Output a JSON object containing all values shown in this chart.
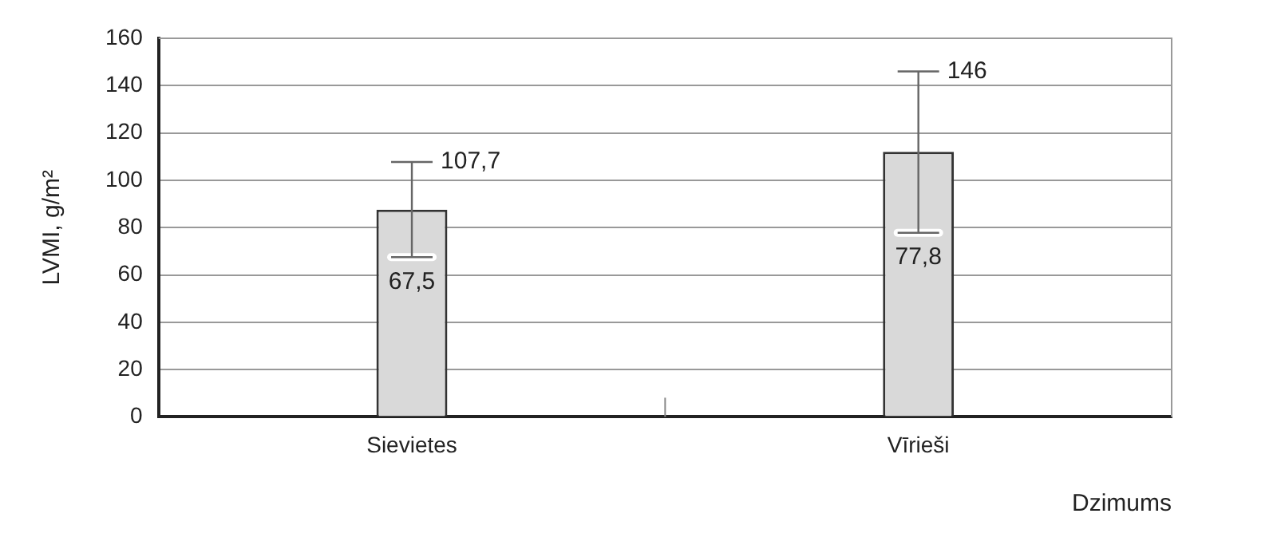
{
  "chart_data": {
    "type": "bar",
    "ylabel": "LVMI, g/m²",
    "xlabel": "Dzimums",
    "categories": [
      "Sievietes",
      "Vīrieši"
    ],
    "values": [
      87.6,
      112
    ],
    "color": "#d9d9d9",
    "errors": [
      [
        67.5,
        107.7
      ],
      [
        77.8,
        146
      ]
    ],
    "ylim": [
      0,
      160
    ],
    "yticks": [
      0,
      20,
      40,
      60,
      80,
      100,
      120,
      140,
      160
    ],
    "grid": "y",
    "annotations": [
      {
        "text": "107,7",
        "x": "Sievietes",
        "y": 107.7
      },
      {
        "text": "67,5",
        "x": "Sievietes",
        "y": 67.5
      },
      {
        "text": "146",
        "x": "Vīrieši",
        "y": 146
      },
      {
        "text": "77,8",
        "x": "Vīrieši",
        "y": 77.8
      }
    ]
  }
}
